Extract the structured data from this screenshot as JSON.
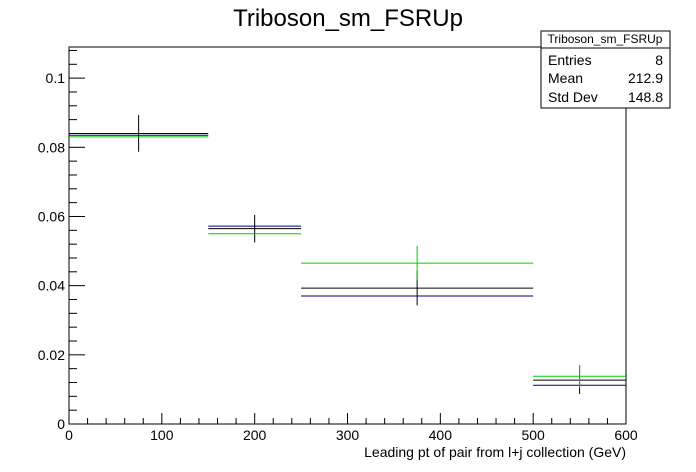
{
  "chart_data": {
    "type": "scatter",
    "title": "Triboson_sm_FSRUp",
    "xlabel": "Leading pt of pair from l+j collection (GeV)",
    "ylabel": "",
    "xlim": [
      0,
      600
    ],
    "ylim": [
      0,
      0.109
    ],
    "x_ticks": [
      0,
      100,
      200,
      300,
      400,
      500,
      600
    ],
    "x_tick_labels": [
      "0",
      "100",
      "200",
      "300",
      "400",
      "500",
      "600"
    ],
    "y_ticks": [
      0,
      0.02,
      0.04,
      0.06,
      0.08,
      0.1
    ],
    "y_tick_labels": [
      "0",
      "0.02",
      "0.04",
      "0.06",
      "0.08",
      "0.1"
    ],
    "grid": false,
    "legend": "none",
    "bins": [
      [
        0,
        150
      ],
      [
        150,
        250
      ],
      [
        250,
        500
      ],
      [
        500,
        600
      ]
    ],
    "series": [
      {
        "color": "#000000",
        "values": [
          0.084,
          0.0565,
          0.0393,
          0.0127
        ],
        "errors": [
          0.0053,
          0.004,
          0.005,
          0.004
        ]
      },
      {
        "color": "#000080",
        "values": [
          0.0835,
          0.0572,
          0.037,
          0.0112
        ]
      },
      {
        "color": "#00cc00",
        "values": [
          0.083,
          0.055,
          0.0465,
          0.0138
        ],
        "errors": [
          0.0,
          0.0,
          0.005,
          0.0033
        ]
      }
    ],
    "stats_box": {
      "title": "Triboson_sm_FSRUp",
      "rows": [
        {
          "label": "Entries",
          "value": "8"
        },
        {
          "label": "Mean",
          "value": "212.9"
        },
        {
          "label": "Std Dev",
          "value": "148.8"
        }
      ]
    }
  }
}
